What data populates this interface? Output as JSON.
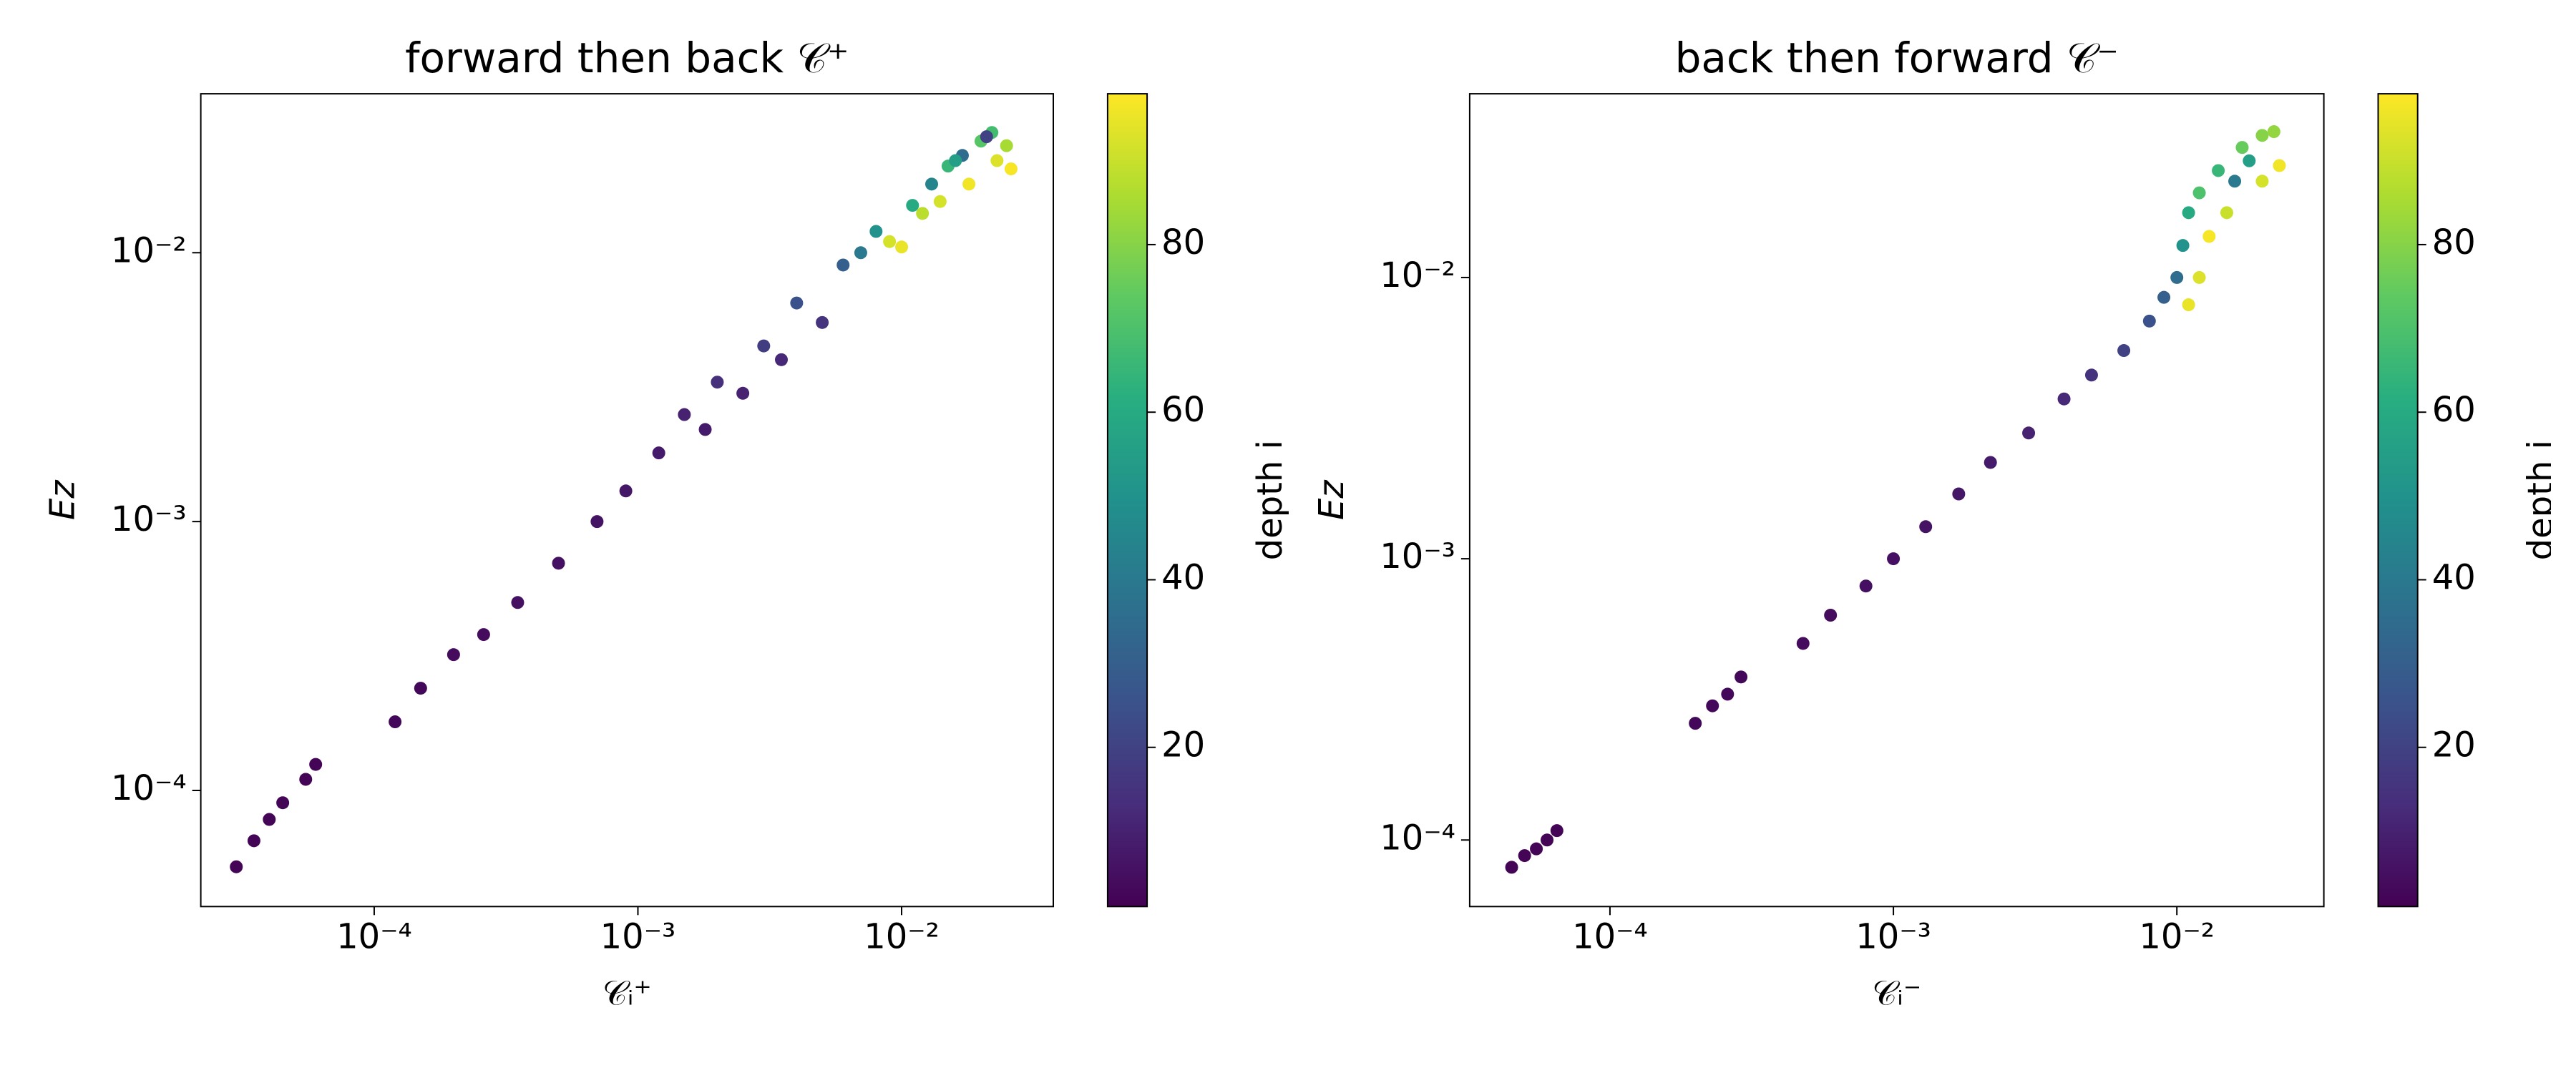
{
  "chart_data": [
    {
      "type": "scatter",
      "title": "forward then back 𝒞⁺",
      "x_label": "𝒞ᵢ⁺",
      "y_label": "Ez",
      "x_scale": "log",
      "y_scale": "log",
      "colormap": "viridis",
      "colorbar_label": "depth i",
      "xlim": [
        2.2e-05,
        0.0376
      ],
      "ylim": [
        3.7e-05,
        0.039
      ],
      "clim": [
        1,
        98
      ],
      "xticks": [
        {
          "value": 0.0001,
          "label": "10⁻⁴"
        },
        {
          "value": 0.001,
          "label": "10⁻³"
        },
        {
          "value": 0.01,
          "label": "10⁻²"
        }
      ],
      "yticks": [
        {
          "value": 0.0001,
          "label": "10⁻⁴"
        },
        {
          "value": 0.001,
          "label": "10⁻³"
        },
        {
          "value": 0.01,
          "label": "10⁻²"
        }
      ],
      "cticks": [
        20,
        40,
        60,
        80
      ],
      "x": [
        3e-05,
        3.5e-05,
        4e-05,
        4.5e-05,
        5.5e-05,
        6e-05,
        0.00012,
        0.00015,
        0.0002,
        0.00026,
        0.00035,
        0.0005,
        0.0007,
        0.0009,
        0.0012,
        0.0015,
        0.0018,
        0.002,
        0.0025,
        0.003,
        0.0035,
        0.004,
        0.005,
        0.006,
        0.007,
        0.008,
        0.009,
        0.01,
        0.011,
        0.012,
        0.013,
        0.014,
        0.015,
        0.017,
        0.018,
        0.02,
        0.022,
        0.023,
        0.025,
        0.026,
        0.021,
        0.016
      ],
      "values": [
        5.2e-05,
        6.5e-05,
        7.8e-05,
        9e-05,
        0.00011,
        0.000125,
        0.00018,
        0.00024,
        0.00032,
        0.00038,
        0.0005,
        0.0007,
        0.001,
        0.0013,
        0.0018,
        0.0025,
        0.0022,
        0.0033,
        0.003,
        0.0045,
        0.004,
        0.0065,
        0.0055,
        0.009,
        0.01,
        0.012,
        0.011,
        0.0105,
        0.015,
        0.014,
        0.018,
        0.0155,
        0.021,
        0.023,
        0.018,
        0.026,
        0.028,
        0.022,
        0.025,
        0.0205,
        0.027,
        0.022
      ],
      "c": [
        2,
        2,
        2,
        2,
        2,
        2,
        3,
        3,
        4,
        4,
        5,
        5,
        6,
        7,
        8,
        10,
        8,
        14,
        10,
        18,
        12,
        25,
        15,
        30,
        40,
        50,
        92,
        95,
        60,
        88,
        45,
        92,
        65,
        35,
        96,
        72,
        68,
        93,
        85,
        97,
        20,
        55
      ]
    },
    {
      "type": "scatter",
      "title": "back then forward 𝒞⁻",
      "x_label": "𝒞ᵢ⁻",
      "y_label": "Ez",
      "x_scale": "log",
      "y_scale": "log",
      "colormap": "viridis",
      "colorbar_label": "depth i",
      "xlim": [
        3.2e-05,
        0.033
      ],
      "ylim": [
        5.8e-05,
        0.045
      ],
      "clim": [
        1,
        98
      ],
      "xticks": [
        {
          "value": 0.0001,
          "label": "10⁻⁴"
        },
        {
          "value": 0.001,
          "label": "10⁻³"
        },
        {
          "value": 0.01,
          "label": "10⁻²"
        }
      ],
      "yticks": [
        {
          "value": 0.0001,
          "label": "10⁻⁴"
        },
        {
          "value": 0.001,
          "label": "10⁻³"
        },
        {
          "value": 0.01,
          "label": "10⁻²"
        }
      ],
      "cticks": [
        20,
        40,
        60,
        80
      ],
      "x": [
        4.5e-05,
        5e-05,
        5.5e-05,
        6e-05,
        6.5e-05,
        0.0002,
        0.00023,
        0.00026,
        0.00029,
        0.00048,
        0.0006,
        0.0008,
        0.001,
        0.0013,
        0.0017,
        0.0022,
        0.003,
        0.004,
        0.005,
        0.0065,
        0.008,
        0.009,
        0.01,
        0.011,
        0.012,
        0.0105,
        0.011,
        0.013,
        0.012,
        0.015,
        0.014,
        0.016,
        0.017,
        0.018,
        0.02,
        0.022,
        0.023,
        0.02
      ],
      "values": [
        8e-05,
        8.8e-05,
        9.3e-05,
        0.0001,
        0.000108,
        0.00026,
        0.0003,
        0.00033,
        0.00038,
        0.0005,
        0.00063,
        0.0008,
        0.001,
        0.0013,
        0.0017,
        0.0022,
        0.0028,
        0.0037,
        0.0045,
        0.0055,
        0.007,
        0.0085,
        0.01,
        0.008,
        0.01,
        0.013,
        0.017,
        0.014,
        0.02,
        0.017,
        0.024,
        0.022,
        0.029,
        0.026,
        0.032,
        0.033,
        0.025,
        0.022
      ],
      "c": [
        2,
        2,
        2,
        2,
        2,
        3,
        3,
        3,
        3,
        4,
        4,
        5,
        5,
        6,
        7,
        8,
        10,
        12,
        15,
        20,
        25,
        30,
        35,
        95,
        93,
        50,
        60,
        97,
        70,
        90,
        65,
        40,
        75,
        55,
        80,
        82,
        96,
        92
      ]
    }
  ]
}
